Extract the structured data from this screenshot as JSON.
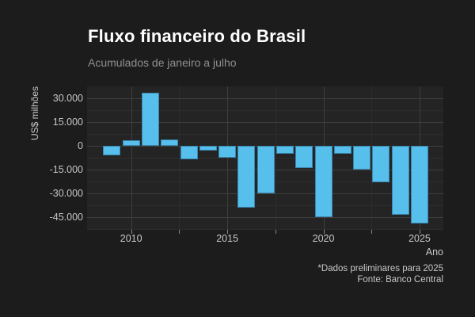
{
  "colors": {
    "background": "#1c1c1c",
    "panel_background": "#242424",
    "bar_fill": "#57bfec",
    "bar_border": "#3a86ad",
    "grid_major": "#3e3e3e",
    "grid_minor": "#2d2d2d",
    "title_text": "#ffffff",
    "subtitle_text": "#8f8f8f",
    "axis_text": "#c7c7c7"
  },
  "chart_data": {
    "type": "bar",
    "title": "Fluxo financeiro do Brasil",
    "subtitle": "Acumulados de janeiro a julho",
    "xlabel": "Ano",
    "ylabel": "US$ milhões",
    "caption_line1": "*Dados preliminares para 2025",
    "caption_line2": "Fonte: Banco Central",
    "legend": "none",
    "grid": true,
    "categories": [
      2009,
      2010,
      2011,
      2012,
      2013,
      2014,
      2015,
      2016,
      2017,
      2018,
      2019,
      2020,
      2021,
      2022,
      2023,
      2024,
      2025
    ],
    "values": [
      -6000,
      3500,
      33500,
      4000,
      -8500,
      -3000,
      -7500,
      -39000,
      -30000,
      -5000,
      -14000,
      -45000,
      -5000,
      -15000,
      -23000,
      -43500,
      -49000
    ],
    "y_axis": {
      "ticks": [
        30000,
        15000,
        0,
        -15000,
        -30000,
        -45000
      ],
      "tick_labels": [
        "30.000",
        "15.000",
        "0",
        "-15.000",
        "-30.000",
        "-45.000"
      ],
      "minor_ticks": [
        22500,
        7500,
        -7500,
        -22500,
        -37500,
        -52500
      ],
      "range": [
        -53000,
        37500
      ]
    },
    "x_axis": {
      "tick_years": [
        2010,
        2015,
        2020,
        2025
      ],
      "tick_labels": [
        "2010",
        "2015",
        "2020",
        "2025"
      ],
      "minor_tick_years": [
        2012.5,
        2017.5,
        2022.5
      ]
    }
  }
}
